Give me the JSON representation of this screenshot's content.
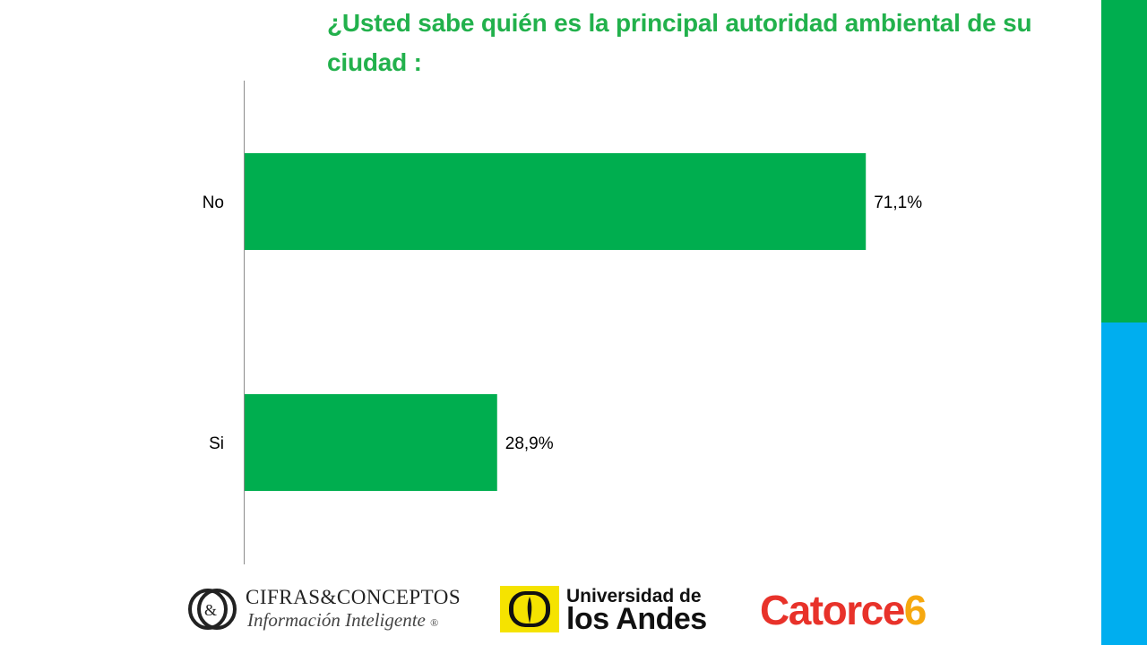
{
  "title": "¿Usted sabe quién es la principal autoridad ambiental de su ciudad :",
  "colors": {
    "bar": "#00ae4f",
    "title": "#22b14c",
    "side_top": "#00ae4f",
    "side_bottom": "#00aeef"
  },
  "chart_data": {
    "type": "bar",
    "orientation": "horizontal",
    "categories": [
      "No",
      "Si"
    ],
    "values": [
      71.1,
      28.9
    ],
    "value_labels": [
      "71,1%",
      "28,9%"
    ],
    "xlim": [
      0,
      100
    ],
    "grid": false,
    "legend": "none"
  },
  "logos": {
    "cifras": {
      "mark": "O&",
      "name": "CIFRAS&CONCEPTOS",
      "tagline": "Información Inteligente",
      "registered": "®"
    },
    "andes": {
      "line1": "Universidad de",
      "line2": "los Andes"
    },
    "catorce": {
      "word": "Catorce",
      "number": "6"
    }
  }
}
